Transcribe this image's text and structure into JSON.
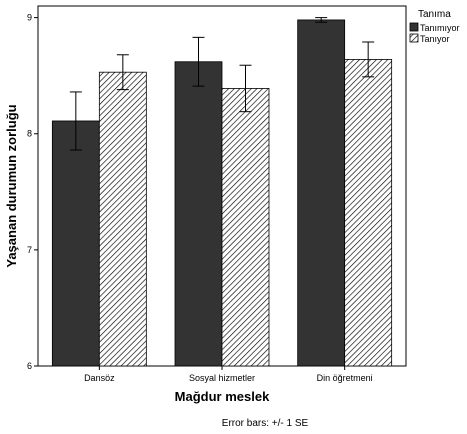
{
  "chart_data": {
    "type": "bar",
    "xlabel": "Mağdur meslek",
    "ylabel": "Yaşanan durumun zorluğu",
    "categories": [
      "Dansöz",
      "Sosyal hizmetler",
      "Din öğretmeni"
    ],
    "ylim": [
      6,
      9.1
    ],
    "yticks": [
      6,
      7,
      8,
      9
    ],
    "legend": {
      "title": "Tanıma",
      "position": "top-right outside"
    },
    "series": [
      {
        "name": "Tanımıyor",
        "values": [
          8.11,
          8.62,
          8.98
        ],
        "se": [
          0.25,
          0.21,
          0.02
        ],
        "color": "#333333",
        "pattern": "solid"
      },
      {
        "name": "Tanıyor",
        "values": [
          8.53,
          8.39,
          8.64
        ],
        "se": [
          0.15,
          0.2,
          0.15
        ],
        "color": "#ffffff",
        "pattern": "diagonal-hatch"
      }
    ],
    "note": "Error bars: +/- 1 SE",
    "grid": false
  }
}
